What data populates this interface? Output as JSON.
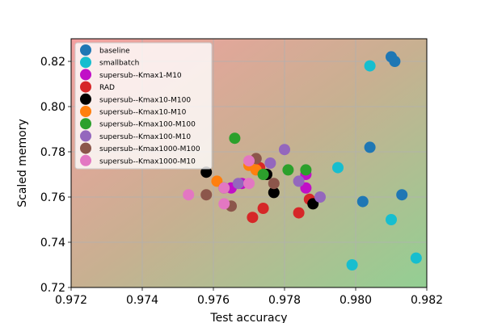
{
  "chart_data": {
    "type": "scatter",
    "xlabel": "Test accuracy",
    "ylabel": "Scaled memory",
    "xlim": [
      0.972,
      0.982
    ],
    "ylim": [
      0.72,
      0.83
    ],
    "xticks": [
      "0.972",
      "0.974",
      "0.976",
      "0.978",
      "0.980",
      "0.982"
    ],
    "yticks": [
      "0.72",
      "0.74",
      "0.76",
      "0.78",
      "0.80",
      "0.82"
    ],
    "xtick_values": [
      0.972,
      0.974,
      0.976,
      0.978,
      0.98,
      0.982
    ],
    "ytick_values": [
      0.72,
      0.74,
      0.76,
      0.78,
      0.8,
      0.82
    ],
    "grid": true,
    "legend_position": "top-left",
    "background": "gradient-red-top-left-green-bottom-right",
    "series": [
      {
        "name": "baseline",
        "color": "#1f77b4",
        "points": [
          [
            0.981,
            0.822
          ],
          [
            0.9811,
            0.82
          ],
          [
            0.9804,
            0.782
          ],
          [
            0.9813,
            0.761
          ],
          [
            0.9802,
            0.758
          ]
        ]
      },
      {
        "name": "smallbatch",
        "color": "#17becf",
        "points": [
          [
            0.9804,
            0.818
          ],
          [
            0.9795,
            0.773
          ],
          [
            0.981,
            0.75
          ],
          [
            0.9799,
            0.73
          ],
          [
            0.9817,
            0.733
          ]
        ]
      },
      {
        "name": "supersub--Kmax1-M10",
        "color": "#c10fc7",
        "points": [
          [
            0.9786,
            0.77
          ],
          [
            0.9786,
            0.764
          ],
          [
            0.9768,
            0.766
          ],
          [
            0.9765,
            0.764
          ]
        ]
      },
      {
        "name": "RAD",
        "color": "#d62728",
        "points": [
          [
            0.9787,
            0.759
          ],
          [
            0.9784,
            0.753
          ],
          [
            0.9774,
            0.755
          ],
          [
            0.9771,
            0.751
          ],
          [
            0.9773,
            0.773
          ]
        ]
      },
      {
        "name": "supersub--Kmax10-M100",
        "color": "#000000",
        "points": [
          [
            0.9758,
            0.771
          ],
          [
            0.9777,
            0.762
          ],
          [
            0.9788,
            0.757
          ],
          [
            0.9775,
            0.77
          ]
        ]
      },
      {
        "name": "supersub--Kmax10-M10",
        "color": "#ff7f0e",
        "points": [
          [
            0.9761,
            0.767
          ],
          [
            0.9772,
            0.772
          ],
          [
            0.977,
            0.774
          ]
        ]
      },
      {
        "name": "supersub--Kmax100-M100",
        "color": "#2ca02c",
        "points": [
          [
            0.9766,
            0.786
          ],
          [
            0.9781,
            0.772
          ],
          [
            0.9786,
            0.772
          ],
          [
            0.9774,
            0.77
          ],
          [
            0.9763,
            0.764
          ]
        ]
      },
      {
        "name": "supersub--Kmax100-M10",
        "color": "#9467bd",
        "points": [
          [
            0.978,
            0.781
          ],
          [
            0.9776,
            0.775
          ],
          [
            0.9784,
            0.767
          ],
          [
            0.979,
            0.76
          ],
          [
            0.9767,
            0.766
          ]
        ]
      },
      {
        "name": "supersub--Kmax1000-M100",
        "color": "#8c564b",
        "points": [
          [
            0.9772,
            0.777
          ],
          [
            0.9777,
            0.766
          ],
          [
            0.9758,
            0.761
          ],
          [
            0.9765,
            0.756
          ]
        ]
      },
      {
        "name": "supersub--Kmax1000-M10",
        "color": "#e377c2",
        "points": [
          [
            0.977,
            0.776
          ],
          [
            0.977,
            0.766
          ],
          [
            0.9753,
            0.761
          ],
          [
            0.9763,
            0.764
          ],
          [
            0.9763,
            0.757
          ]
        ]
      }
    ]
  }
}
